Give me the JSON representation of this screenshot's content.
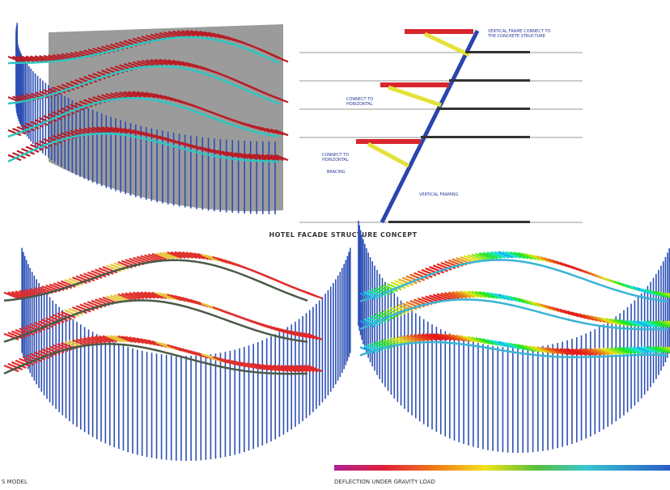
{
  "header": {
    "title": "HOTEL FACADE STRUCTURE CONCEPT"
  },
  "section_diagram": {
    "labels": [
      {
        "lines": [
          "VERTICAL FRAME CONNECT TO",
          "THE CONCRETE STRUCTURE"
        ]
      },
      {
        "lines": [
          "CONNECT TO",
          "HORIZONTAL"
        ]
      },
      {
        "lines": [
          "CONNECT TO",
          "HORIZONTAL"
        ]
      },
      {
        "lines": [
          "BRACING"
        ]
      },
      {
        "lines": [
          "VERTICAL FRAMING"
        ]
      }
    ]
  },
  "panels": [
    {
      "caption": "S MODEL"
    },
    {
      "caption": "DEFLECTION UNDER GRAVITY LOAD"
    }
  ]
}
